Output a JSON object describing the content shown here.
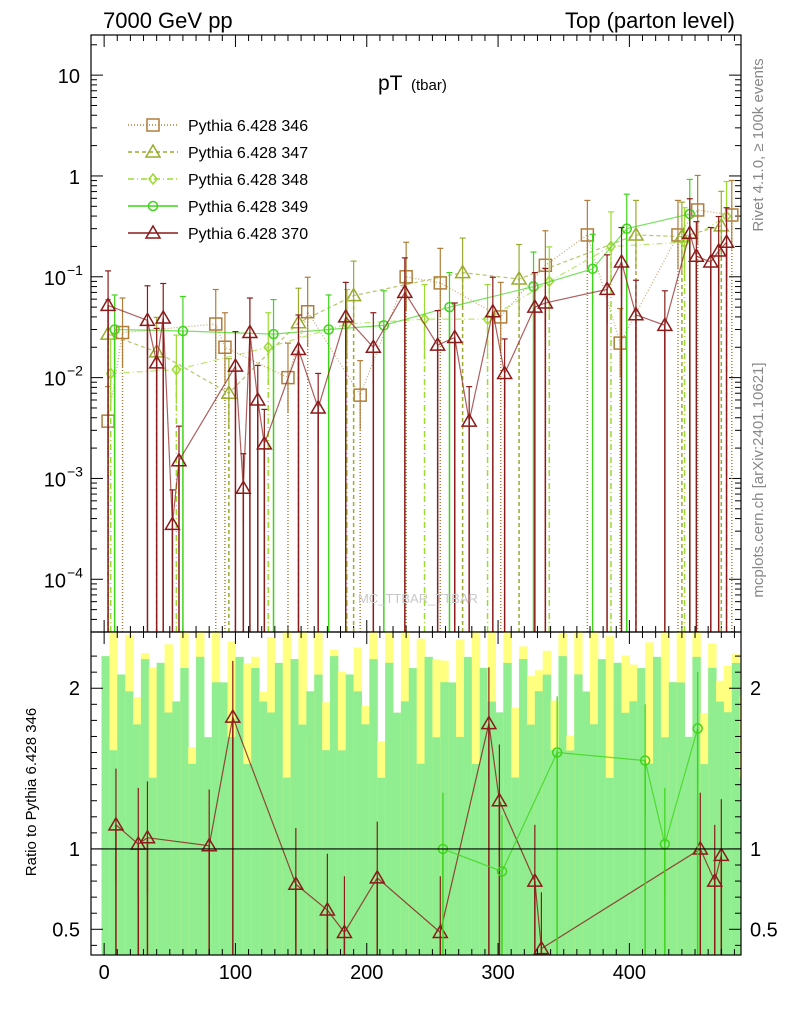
{
  "header": {
    "left": "7000 GeV pp",
    "right": "Top (parton level)"
  },
  "side_labels": {
    "top": "Rivet 4.1.0, ≥ 100k events",
    "bottom": "mcplots.cern.ch [arXiv:2401.10621]"
  },
  "watermark": "MC_TTBAR_TTBAR",
  "chart_data": [
    {
      "type": "line",
      "title": "pT (tbar)",
      "title_main": "pT",
      "title_sub": "(tbar)",
      "y_scale": "log",
      "xlim": [
        -10,
        485
      ],
      "ylim": [
        3e-05,
        25
      ],
      "x_ticks": [
        0,
        100,
        200,
        300,
        400
      ],
      "y_tick_labels": [
        "10",
        "1",
        "10^-1",
        "10^-2",
        "10^-3",
        "10^-4"
      ],
      "legend_position": "top-left",
      "series": [
        {
          "name": "Pythia 6.428 346",
          "color": "#b07d3a",
          "marker": "square",
          "points": [
            [
              3,
              0.0037
            ],
            [
              14,
              0.028
            ],
            [
              85,
              0.034
            ],
            [
              92,
              0.02
            ],
            [
              140,
              0.01
            ],
            [
              155,
              0.045
            ],
            [
              195,
              0.0067
            ],
            [
              230,
              0.1
            ],
            [
              256,
              0.087
            ],
            [
              302,
              0.04
            ],
            [
              336,
              0.13
            ],
            [
              368,
              0.26
            ],
            [
              393,
              0.022
            ],
            [
              437,
              0.26
            ],
            [
              452,
              0.46
            ],
            [
              478,
              0.41
            ]
          ]
        },
        {
          "name": "Pythia 6.428 347",
          "color": "#9aab2e",
          "marker": "triangle",
          "points": [
            [
              3,
              0.027
            ],
            [
              40,
              0.018
            ],
            [
              95,
              0.007
            ],
            [
              148,
              0.035
            ],
            [
              190,
              0.065
            ],
            [
              273,
              0.11
            ],
            [
              316,
              0.095
            ],
            [
              405,
              0.26
            ],
            [
              440,
              0.25
            ],
            [
              470,
              0.32
            ]
          ]
        },
        {
          "name": "Pythia 6.428 348",
          "color": "#9bdb32",
          "marker": "diamond",
          "points": [
            [
              5,
              0.011
            ],
            [
              55,
              0.012
            ],
            [
              125,
              0.02
            ],
            [
              185,
              0.034
            ],
            [
              244,
              0.038
            ],
            [
              292,
              0.038
            ],
            [
              339,
              0.09
            ],
            [
              386,
              0.2
            ],
            [
              442,
              0.22
            ],
            [
              474,
              0.4
            ]
          ]
        },
        {
          "name": "Pythia 6.428 349",
          "color": "#3fd41a",
          "marker": "circle",
          "points": [
            [
              8,
              0.03
            ],
            [
              60,
              0.029
            ],
            [
              129,
              0.027
            ],
            [
              171,
              0.03
            ],
            [
              213,
              0.033
            ],
            [
              263,
              0.05
            ],
            [
              327,
              0.08
            ],
            [
              372,
              0.12
            ],
            [
              398,
              0.3
            ],
            [
              446,
              0.42
            ]
          ]
        },
        {
          "name": "Pythia 6.428 370",
          "color": "#8b1a1a",
          "marker": "triangle",
          "points": [
            [
              3,
              0.052
            ],
            [
              33,
              0.037
            ],
            [
              40,
              0.014
            ],
            [
              45,
              0.039
            ],
            [
              52,
              0.00035
            ],
            [
              57,
              0.0015
            ],
            [
              100,
              0.013
            ],
            [
              106,
              0.0008
            ],
            [
              111,
              0.028
            ],
            [
              117,
              0.006
            ],
            [
              122,
              0.0022
            ],
            [
              148,
              0.019
            ],
            [
              163,
              0.005
            ],
            [
              184,
              0.04
            ],
            [
              205,
              0.02
            ],
            [
              229,
              0.07
            ],
            [
              254,
              0.021
            ],
            [
              267,
              0.025
            ],
            [
              278,
              0.0037
            ],
            [
              296,
              0.045
            ],
            [
              305,
              0.011
            ],
            [
              328,
              0.05
            ],
            [
              336,
              0.055
            ],
            [
              383,
              0.075
            ],
            [
              394,
              0.14
            ],
            [
              405,
              0.042
            ],
            [
              427,
              0.033
            ],
            [
              446,
              0.27
            ],
            [
              451,
              0.16
            ],
            [
              462,
              0.14
            ],
            [
              468,
              0.18
            ],
            [
              474,
              0.22
            ]
          ]
        }
      ]
    },
    {
      "type": "line",
      "ylabel": "Ratio to Pythia 6.428 346",
      "y_scale": "linear",
      "xlim": [
        -10,
        485
      ],
      "ylim": [
        0.34,
        2.35
      ],
      "x_ticks": [
        0,
        100,
        200,
        300,
        400
      ],
      "y_ticks": [
        0.5,
        1,
        2
      ],
      "reference_line": 1,
      "band_colors": [
        "#ffff80",
        "#90ee90"
      ],
      "series": [
        {
          "name": "Pythia 6.428 370",
          "color": "#8b1a1a",
          "points": [
            [
              9,
              1.15
            ],
            [
              26,
              1.03
            ],
            [
              33,
              1.07
            ],
            [
              80,
              1.02
            ],
            [
              98,
              1.82
            ],
            [
              146,
              0.78
            ],
            [
              170,
              0.62
            ],
            [
              183,
              0.48
            ],
            [
              208,
              0.82
            ],
            [
              256,
              0.48
            ],
            [
              293,
              1.78
            ],
            [
              301,
              1.3
            ],
            [
              328,
              0.8
            ],
            [
              333,
              0.38
            ],
            [
              454,
              1.0
            ],
            [
              465,
              0.8
            ],
            [
              470,
              0.96
            ]
          ]
        },
        {
          "name": "Pythia 6.428 349",
          "color": "#3fd41a",
          "points": [
            [
              258,
              1.0
            ],
            [
              303,
              0.86
            ],
            [
              345,
              1.6
            ],
            [
              412,
              1.55
            ],
            [
              427,
              1.03
            ],
            [
              452,
              1.75
            ]
          ]
        }
      ]
    }
  ]
}
